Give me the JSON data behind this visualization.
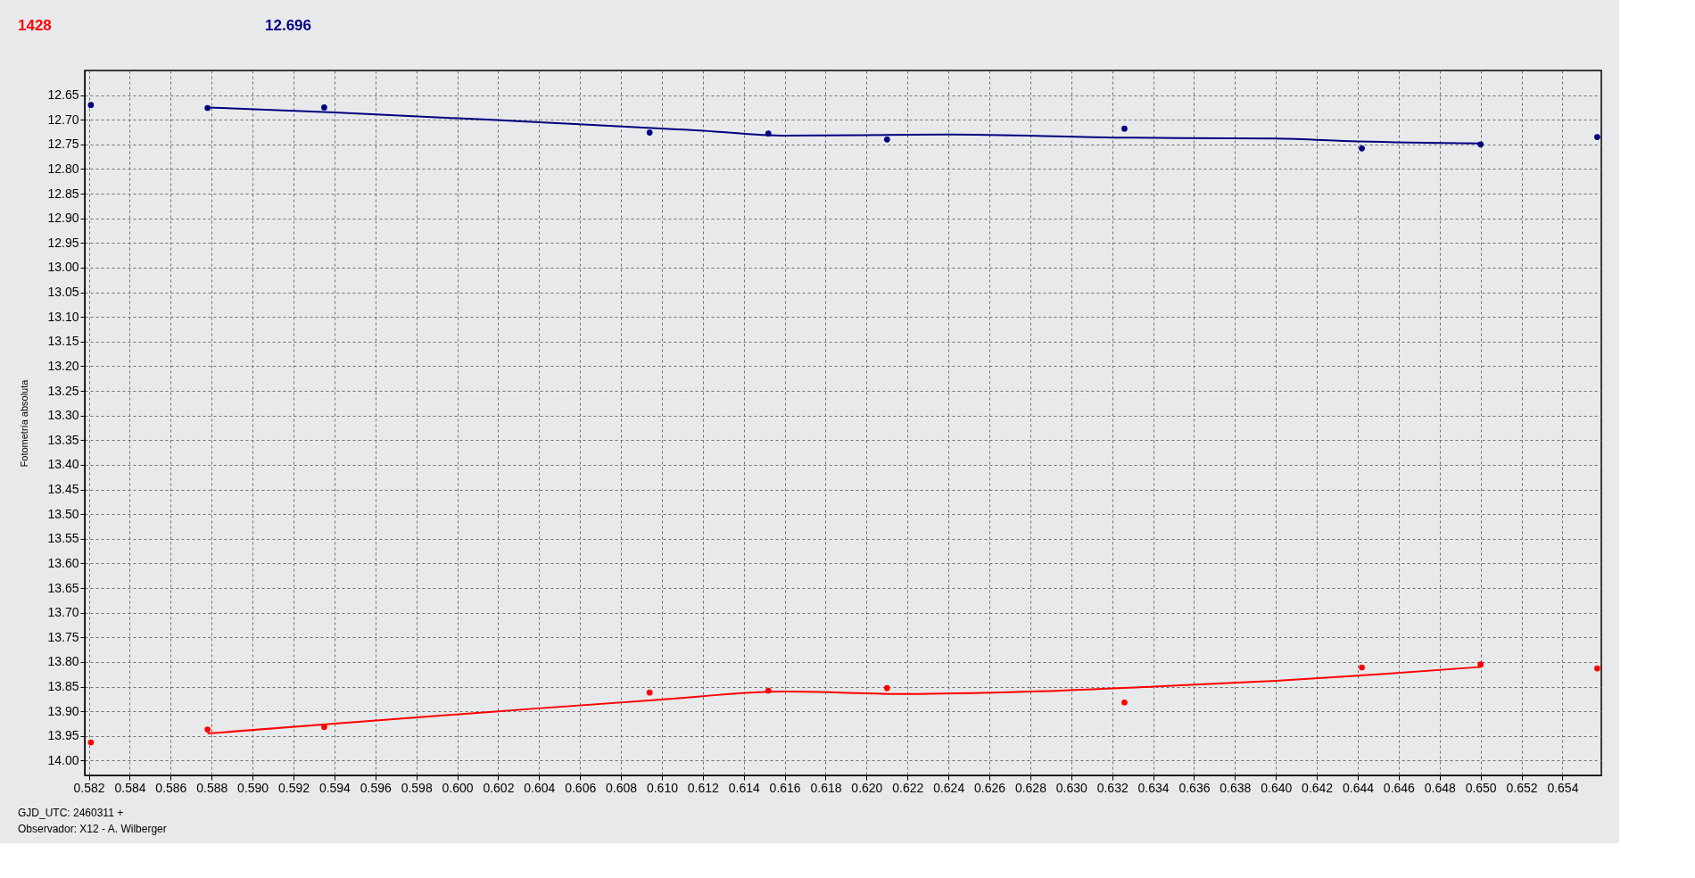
{
  "chart_data": {
    "type": "scatter",
    "ylabel": "Fotometría absoluta",
    "annotations": [
      "1428",
      "12.696",
      "GJD_UTC: 2460311 +",
      "Observador: X12 - A. Wilberger"
    ],
    "x": [
      0.5821,
      0.5878,
      0.5935,
      0.6094,
      0.6152,
      0.621,
      0.6326,
      0.6442,
      0.65,
      0.6557
    ],
    "series": [
      {
        "marker": "circle",
        "color": "#ff0000",
        "values": [
          13.963,
          13.937,
          13.932,
          13.862,
          13.858,
          13.853,
          13.882,
          13.811,
          13.805,
          13.813
        ]
      },
      {
        "marker": "circle",
        "color": "#000080",
        "values": [
          12.67,
          12.676,
          12.675,
          12.726,
          12.728,
          12.74,
          12.718,
          12.758,
          12.75,
          12.735
        ]
      },
      {
        "type": "line",
        "marker": "none",
        "color": "#ff0000",
        "x": [
          0.5878,
          0.594,
          0.602,
          0.61,
          0.616,
          0.622,
          0.628,
          0.634,
          0.64,
          0.645,
          0.65
        ],
        "values": [
          13.945,
          13.925,
          13.9,
          13.876,
          13.86,
          13.865,
          13.86,
          13.85,
          13.838,
          13.825,
          13.81
        ]
      },
      {
        "type": "line",
        "marker": "none",
        "color": "#000080",
        "x": [
          0.5878,
          0.594,
          0.604,
          0.612,
          0.616,
          0.624,
          0.632,
          0.64,
          0.644,
          0.65
        ],
        "values": [
          12.675,
          12.685,
          12.705,
          12.722,
          12.732,
          12.73,
          12.736,
          12.738,
          12.744,
          12.748
        ]
      }
    ],
    "xlim": [
      0.5818,
      0.6559
    ],
    "ylim": [
      14.03,
      12.6
    ],
    "xticks": [
      {
        "value": 0.582,
        "label": "0.582"
      },
      {
        "value": 0.584,
        "label": "0.584"
      },
      {
        "value": 0.586,
        "label": "0.586"
      },
      {
        "value": 0.588,
        "label": "0.588"
      },
      {
        "value": 0.59,
        "label": "0.590"
      },
      {
        "value": 0.592,
        "label": "0.592"
      },
      {
        "value": 0.594,
        "label": "0.594"
      },
      {
        "value": 0.596,
        "label": "0.596"
      },
      {
        "value": 0.598,
        "label": "0.598"
      },
      {
        "value": 0.6,
        "label": "0.600"
      },
      {
        "value": 0.602,
        "label": "0.602"
      },
      {
        "value": 0.604,
        "label": "0.604"
      },
      {
        "value": 0.606,
        "label": "0.606"
      },
      {
        "value": 0.608,
        "label": "0.608"
      },
      {
        "value": 0.61,
        "label": "0.610"
      },
      {
        "value": 0.612,
        "label": "0.612"
      },
      {
        "value": 0.614,
        "label": "0.614"
      },
      {
        "value": 0.616,
        "label": "0.616"
      },
      {
        "value": 0.618,
        "label": "0.618"
      },
      {
        "value": 0.62,
        "label": "0.620"
      },
      {
        "value": 0.622,
        "label": "0.622"
      },
      {
        "value": 0.624,
        "label": "0.624"
      },
      {
        "value": 0.626,
        "label": "0.626"
      },
      {
        "value": 0.628,
        "label": "0.628"
      },
      {
        "value": 0.63,
        "label": "0.630"
      },
      {
        "value": 0.632,
        "label": "0.632"
      },
      {
        "value": 0.634,
        "label": "0.634"
      },
      {
        "value": 0.636,
        "label": "0.636"
      },
      {
        "value": 0.638,
        "label": "0.638"
      },
      {
        "value": 0.64,
        "label": "0.640"
      },
      {
        "value": 0.642,
        "label": "0.642"
      },
      {
        "value": 0.644,
        "label": "0.644"
      },
      {
        "value": 0.646,
        "label": "0.646"
      },
      {
        "value": 0.648,
        "label": "0.648"
      },
      {
        "value": 0.65,
        "label": "0.650"
      },
      {
        "value": 0.652,
        "label": "0.652"
      },
      {
        "value": 0.654,
        "label": "0.654"
      }
    ],
    "yticks": [
      12.65,
      {
        "value": 12.7,
        "label": "12.70"
      },
      12.75,
      {
        "value": 12.8,
        "label": "12.80"
      },
      12.85,
      {
        "value": 12.9,
        "label": "12.90"
      },
      12.95,
      {
        "value": 13.0,
        "label": "13.00"
      },
      13.05,
      {
        "value": 13.1,
        "label": "13.10"
      },
      13.15,
      {
        "value": 13.2,
        "label": "13.20"
      },
      13.25,
      {
        "value": 13.3,
        "label": "13.30"
      },
      13.35,
      {
        "value": 13.4,
        "label": "13.40"
      },
      13.45,
      {
        "value": 13.5,
        "label": "13.50"
      },
      13.55,
      {
        "value": 13.6,
        "label": "13.60"
      },
      13.65,
      {
        "value": 13.7,
        "label": "13.70"
      },
      13.75,
      {
        "value": 13.8,
        "label": "13.80"
      },
      13.85,
      {
        "value": 13.9,
        "label": "13.90"
      },
      13.95,
      {
        "value": 14.0,
        "label": "14.00"
      }
    ],
    "grid": true,
    "line_style": "solid"
  }
}
